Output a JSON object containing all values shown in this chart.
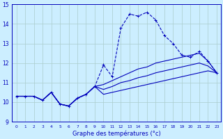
{
  "xlabel": "Graphe des températures (°c)",
  "background_color": "#cceeff",
  "grid_color": "#aacccc",
  "line_color": "#0000bb",
  "xlim": [
    -0.5,
    23.5
  ],
  "ylim": [
    9,
    15
  ],
  "yticks": [
    9,
    10,
    11,
    12,
    13,
    14,
    15
  ],
  "xticks": [
    0,
    1,
    2,
    3,
    4,
    5,
    6,
    7,
    8,
    9,
    10,
    11,
    12,
    13,
    14,
    15,
    16,
    17,
    18,
    19,
    20,
    21,
    22,
    23
  ],
  "hours": [
    0,
    1,
    2,
    3,
    4,
    5,
    6,
    7,
    8,
    9,
    10,
    11,
    12,
    13,
    14,
    15,
    16,
    17,
    18,
    19,
    20,
    21,
    22,
    23
  ],
  "series1": [
    10.3,
    10.3,
    10.3,
    10.1,
    10.5,
    9.9,
    9.8,
    10.2,
    10.4,
    10.8,
    11.9,
    11.3,
    13.8,
    14.5,
    14.4,
    14.6,
    14.2,
    13.4,
    13.0,
    12.4,
    12.3,
    12.6,
    12.1,
    11.5
  ],
  "series2": [
    10.3,
    10.3,
    10.3,
    10.1,
    10.5,
    9.9,
    9.8,
    10.2,
    10.4,
    10.8,
    10.4,
    10.5,
    10.6,
    10.7,
    10.8,
    10.9,
    11.0,
    11.1,
    11.2,
    11.3,
    11.4,
    11.5,
    11.6,
    11.5
  ],
  "series3": [
    10.3,
    10.3,
    10.3,
    10.1,
    10.5,
    9.9,
    9.8,
    10.2,
    10.4,
    10.8,
    10.9,
    11.1,
    11.3,
    11.5,
    11.7,
    11.8,
    12.0,
    12.1,
    12.2,
    12.3,
    12.4,
    12.5,
    12.1,
    11.5
  ],
  "series4": [
    10.3,
    10.3,
    10.3,
    10.1,
    10.5,
    9.9,
    9.8,
    10.2,
    10.4,
    10.8,
    10.65,
    10.8,
    11.0,
    11.1,
    11.25,
    11.35,
    11.5,
    11.6,
    11.7,
    11.8,
    11.9,
    12.0,
    11.85,
    11.5
  ]
}
